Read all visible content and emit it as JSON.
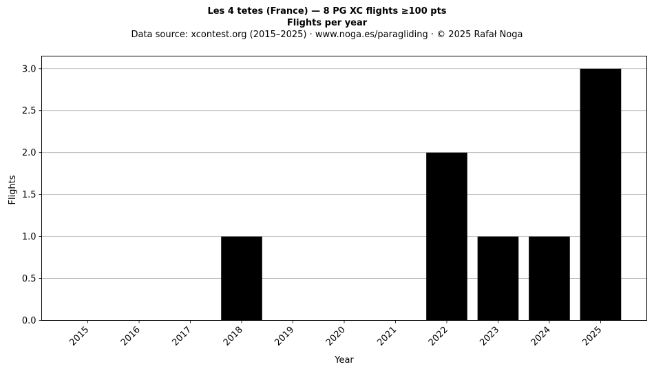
{
  "chart_data": {
    "type": "bar",
    "title": "Les 4 tetes (France)  —  8 PG XC flights ≥100 pts",
    "subtitle": "Flights per year",
    "source": "Data source: xcontest.org (2015–2025)  ·  www.noga.es/paragliding  ·  © 2025 Rafał Noga",
    "categories": [
      "2015",
      "2016",
      "2017",
      "2018",
      "2019",
      "2020",
      "2021",
      "2022",
      "2023",
      "2024",
      "2025"
    ],
    "values": [
      0,
      0,
      0,
      1,
      0,
      0,
      0,
      2,
      1,
      1,
      3
    ],
    "xlabel": "Year",
    "ylabel": "Flights",
    "ylim": [
      0,
      3.15
    ],
    "yticks": [
      "0.0",
      "0.5",
      "1.0",
      "1.5",
      "2.0",
      "2.5",
      "3.0"
    ],
    "grid": "y",
    "bar_color": "#000000",
    "grid_color": "#b0b0b0"
  }
}
